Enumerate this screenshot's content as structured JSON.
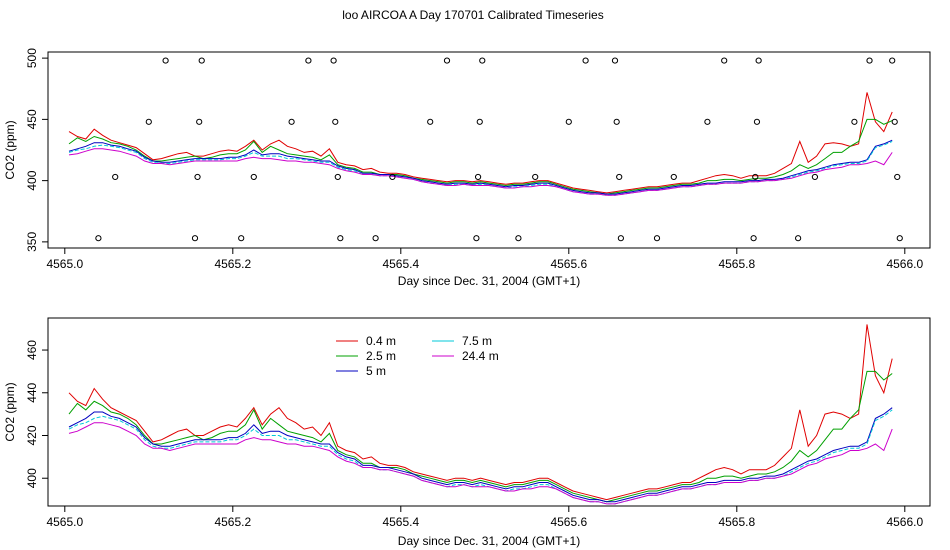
{
  "figure": {
    "title": "loo AIRCOA A  Day 170701  Calibrated Timeseries"
  },
  "chart_data": [
    {
      "type": "line",
      "xlabel": "Day since Dec. 31, 2004 (GMT+1)",
      "ylabel": "CO2 (ppm)",
      "xlim": [
        4564.98,
        4566.03
      ],
      "ylim": [
        345,
        505
      ],
      "xticks": [
        4565.0,
        4565.2,
        4565.4,
        4565.6,
        4565.8,
        4566.0
      ],
      "xtick_labels": [
        "4565.0",
        "4565.2",
        "4565.4",
        "4565.6",
        "4565.8",
        "4566.0"
      ],
      "yticks": [
        350,
        400,
        450,
        500
      ],
      "ytick_labels": [
        "350",
        "400",
        "450",
        "500"
      ],
      "calibration_points": {
        "marker": "open-circle",
        "points": [
          [
            4565.04,
            353
          ],
          [
            4565.06,
            403
          ],
          [
            4565.1,
            448
          ],
          [
            4565.12,
            498
          ],
          [
            4565.155,
            353
          ],
          [
            4565.158,
            403
          ],
          [
            4565.16,
            448
          ],
          [
            4565.163,
            498
          ],
          [
            4565.21,
            353
          ],
          [
            4565.225,
            403
          ],
          [
            4565.27,
            448
          ],
          [
            4565.29,
            498
          ],
          [
            4565.32,
            498
          ],
          [
            4565.322,
            448
          ],
          [
            4565.325,
            403
          ],
          [
            4565.328,
            353
          ],
          [
            4565.37,
            353
          ],
          [
            4565.39,
            403
          ],
          [
            4565.435,
            448
          ],
          [
            4565.455,
            498
          ],
          [
            4565.49,
            353
          ],
          [
            4565.492,
            403
          ],
          [
            4565.494,
            448
          ],
          [
            4565.497,
            498
          ],
          [
            4565.54,
            353
          ],
          [
            4565.56,
            403
          ],
          [
            4565.6,
            448
          ],
          [
            4565.62,
            498
          ],
          [
            4565.655,
            498
          ],
          [
            4565.657,
            448
          ],
          [
            4565.66,
            403
          ],
          [
            4565.662,
            353
          ],
          [
            4565.705,
            353
          ],
          [
            4565.725,
            403
          ],
          [
            4565.765,
            448
          ],
          [
            4565.785,
            498
          ],
          [
            4565.82,
            353
          ],
          [
            4565.822,
            403
          ],
          [
            4565.824,
            448
          ],
          [
            4565.826,
            498
          ],
          [
            4565.873,
            353
          ],
          [
            4565.893,
            403
          ],
          [
            4565.94,
            448
          ],
          [
            4565.958,
            498
          ],
          [
            4565.985,
            498
          ],
          [
            4565.988,
            448
          ],
          [
            4565.991,
            403
          ],
          [
            4565.994,
            353
          ]
        ]
      }
    },
    {
      "type": "line",
      "xlabel": "Day since Dec. 31, 2004 (GMT+1)",
      "ylabel": "CO2 (ppm)",
      "xlim": [
        4564.98,
        4566.03
      ],
      "ylim": [
        387,
        475
      ],
      "xticks": [
        4565.0,
        4565.2,
        4565.4,
        4565.6,
        4565.8,
        4566.0
      ],
      "xtick_labels": [
        "4565.0",
        "4565.2",
        "4565.4",
        "4565.6",
        "4565.8",
        "4566.0"
      ],
      "yticks": [
        400,
        420,
        440,
        460
      ],
      "ytick_labels": [
        "400",
        "420",
        "440",
        "460"
      ],
      "legend": {
        "position": "top-left",
        "entries": [
          {
            "label": "0.4 m",
            "color": "#e00000"
          },
          {
            "label": "2.5 m",
            "color": "#00a000"
          },
          {
            "label": "5 m",
            "color": "#0000c0"
          },
          {
            "label": "7.5 m",
            "color": "#00c8d8"
          },
          {
            "label": "24.4 m",
            "color": "#cc00cc"
          }
        ]
      }
    }
  ],
  "series_data": {
    "x": [
      4565.005,
      4565.015,
      4565.025,
      4565.035,
      4565.045,
      4565.055,
      4565.065,
      4565.075,
      4565.085,
      4565.095,
      4565.105,
      4565.115,
      4565.125,
      4565.135,
      4565.145,
      4565.155,
      4565.165,
      4565.175,
      4565.185,
      4565.195,
      4565.205,
      4565.215,
      4565.225,
      4565.235,
      4565.245,
      4565.255,
      4565.265,
      4565.275,
      4565.285,
      4565.295,
      4565.305,
      4565.315,
      4565.325,
      4565.335,
      4565.345,
      4565.355,
      4565.365,
      4565.375,
      4565.385,
      4565.395,
      4565.405,
      4565.415,
      4565.425,
      4565.435,
      4565.445,
      4565.455,
      4565.465,
      4565.475,
      4565.485,
      4565.495,
      4565.505,
      4565.515,
      4565.525,
      4565.535,
      4565.545,
      4565.555,
      4565.565,
      4565.575,
      4565.585,
      4565.595,
      4565.605,
      4565.615,
      4565.625,
      4565.635,
      4565.645,
      4565.655,
      4565.665,
      4565.675,
      4565.685,
      4565.695,
      4565.705,
      4565.715,
      4565.725,
      4565.735,
      4565.745,
      4565.755,
      4565.765,
      4565.775,
      4565.785,
      4565.795,
      4565.805,
      4565.815,
      4565.825,
      4565.835,
      4565.845,
      4565.855,
      4565.865,
      4565.875,
      4565.885,
      4565.895,
      4565.905,
      4565.915,
      4565.925,
      4565.935,
      4565.945,
      4565.955,
      4565.965,
      4565.975,
      4565.985
    ],
    "series": [
      {
        "label_ref": 0,
        "color": "#e00000",
        "values": [
          440,
          436,
          434,
          442,
          437,
          433,
          431,
          429,
          427,
          422,
          417,
          418,
          420,
          422,
          423,
          420,
          420,
          422,
          424,
          425,
          424,
          428,
          433,
          425,
          430,
          433,
          428,
          426,
          423,
          424,
          420,
          426,
          415,
          413,
          412,
          409,
          410,
          407,
          406,
          406,
          405,
          403,
          402,
          401,
          400,
          399,
          400,
          400,
          399,
          400,
          399,
          398,
          397,
          398,
          398,
          399,
          400,
          400,
          398,
          396,
          394,
          393,
          392,
          391,
          390,
          391,
          392,
          393,
          394,
          395,
          395,
          396,
          397,
          398,
          398,
          400,
          402,
          404,
          405,
          404,
          402,
          404,
          404,
          404,
          406,
          410,
          414,
          432,
          415,
          420,
          430,
          431,
          430,
          428,
          430,
          472,
          448,
          440,
          456
        ]
      },
      {
        "label_ref": 1,
        "color": "#00a000",
        "values": [
          430,
          435,
          432,
          436,
          434,
          431,
          430,
          428,
          425,
          420,
          416,
          416,
          417,
          418,
          419,
          420,
          418,
          419,
          421,
          422,
          422,
          425,
          432,
          423,
          428,
          425,
          422,
          421,
          420,
          419,
          417,
          421,
          413,
          411,
          410,
          407,
          407,
          405,
          405,
          405,
          404,
          402,
          401,
          400,
          399,
          398,
          399,
          399,
          398,
          399,
          398,
          397,
          396,
          397,
          397,
          398,
          399,
          399,
          397,
          395,
          393,
          392,
          391,
          390,
          389,
          390,
          391,
          392,
          393,
          394,
          394,
          395,
          396,
          397,
          397,
          398,
          400,
          400,
          401,
          401,
          400,
          401,
          402,
          402,
          403,
          405,
          408,
          413,
          410,
          413,
          418,
          423,
          423,
          428,
          432,
          450,
          450,
          446,
          449
        ]
      },
      {
        "label_ref": 2,
        "color": "#0000c0",
        "values": [
          424,
          426,
          428,
          431,
          431,
          429,
          428,
          426,
          424,
          419,
          416,
          415,
          415,
          416,
          417,
          418,
          418,
          418,
          418,
          419,
          419,
          421,
          425,
          421,
          422,
          422,
          420,
          419,
          418,
          417,
          416,
          416,
          412,
          410,
          409,
          406,
          406,
          405,
          405,
          404,
          403,
          402,
          400,
          399,
          398,
          397,
          398,
          398,
          397,
          398,
          397,
          396,
          395,
          396,
          396,
          397,
          398,
          398,
          396,
          394,
          392,
          391,
          390,
          390,
          389,
          389,
          390,
          391,
          392,
          393,
          393,
          394,
          395,
          396,
          396,
          397,
          398,
          398,
          399,
          399,
          399,
          400,
          400,
          401,
          401,
          402,
          404,
          406,
          408,
          409,
          411,
          413,
          414,
          415,
          415,
          417,
          428,
          430,
          433
        ]
      },
      {
        "label_ref": 3,
        "color": "#00c8d8",
        "values": [
          423,
          425,
          426,
          428,
          429,
          428,
          427,
          425,
          423,
          418,
          415,
          414,
          414,
          415,
          416,
          417,
          417,
          417,
          417,
          418,
          418,
          420,
          423,
          420,
          420,
          420,
          418,
          418,
          417,
          416,
          415,
          415,
          411,
          409,
          408,
          405,
          405,
          404,
          404,
          403,
          402,
          401,
          399,
          398,
          397,
          396,
          397,
          397,
          396,
          397,
          396,
          395,
          394,
          395,
          395,
          396,
          397,
          397,
          395,
          393,
          391,
          390,
          389,
          389,
          388,
          388,
          389,
          390,
          391,
          392,
          392,
          393,
          394,
          395,
          395,
          396,
          397,
          397,
          398,
          398,
          398,
          399,
          399,
          400,
          400,
          401,
          403,
          405,
          407,
          408,
          410,
          412,
          413,
          414,
          414,
          416,
          427,
          429,
          432
        ]
      },
      {
        "label_ref": 4,
        "color": "#cc00cc",
        "values": [
          421,
          422,
          424,
          426,
          426,
          425,
          424,
          422,
          420,
          416,
          414,
          414,
          413,
          414,
          415,
          416,
          416,
          416,
          416,
          416,
          416,
          418,
          419,
          418,
          418,
          417,
          416,
          416,
          415,
          415,
          414,
          413,
          410,
          408,
          407,
          405,
          405,
          404,
          404,
          403,
          402,
          401,
          399,
          398,
          397,
          396,
          396,
          397,
          396,
          396,
          396,
          395,
          394,
          394,
          395,
          395,
          396,
          396,
          395,
          393,
          391,
          390,
          389,
          389,
          388,
          388,
          389,
          390,
          391,
          392,
          392,
          393,
          394,
          395,
          395,
          396,
          397,
          397,
          398,
          398,
          398,
          399,
          399,
          400,
          400,
          401,
          402,
          404,
          406,
          407,
          409,
          410,
          411,
          413,
          413,
          414,
          416,
          413,
          423
        ]
      }
    ]
  }
}
